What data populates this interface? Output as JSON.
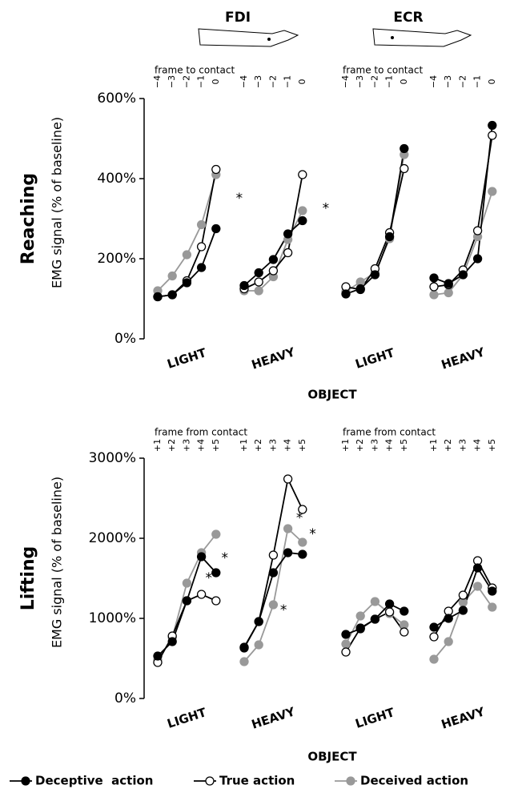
{
  "header": {
    "muscles": [
      "FDI",
      "ECR"
    ]
  },
  "chart_data": [
    {
      "type": "line",
      "title": "Reaching",
      "ylabel": "EMG signal (% of baseline)",
      "xlabel": "OBJECT",
      "frame_label": "frame  to contact",
      "frame_ticks": [
        "−4",
        "−3",
        "−2",
        "−1",
        "0"
      ],
      "categories": [
        "LIGHT",
        "HEAVY",
        "LIGHT",
        "HEAVY"
      ],
      "ylim": [
        0,
        600
      ],
      "yticks": [
        {
          "value": 0,
          "label": "0%"
        },
        {
          "value": 200,
          "label": "200%"
        },
        {
          "value": 400,
          "label": "400%"
        },
        {
          "value": 600,
          "label": "600%"
        }
      ],
      "series": [
        {
          "name": "Deceptive  action",
          "color": "#000000",
          "fill": "#000000",
          "values": [
            [
              105,
              110,
              140,
              178,
              275
            ],
            [
              133,
              165,
              198,
              262,
              295
            ],
            [
              112,
              125,
              160,
              255,
              475
            ],
            [
              152,
              138,
              160,
              200,
              533
            ]
          ]
        },
        {
          "name": "True action",
          "color": "#000000",
          "fill": "#ffffff",
          "values": [
            [
              105,
              110,
              145,
              230,
              423
            ],
            [
              125,
              142,
              170,
              215,
              410
            ],
            [
              130,
              123,
              175,
              265,
              425
            ],
            [
              130,
              135,
              172,
              270,
              508
            ]
          ]
        },
        {
          "name": "Deceived action",
          "color": "#999999",
          "fill": "#999999",
          "values": [
            [
              120,
              157,
              210,
              285,
              410
            ],
            [
              120,
              120,
              155,
              248,
              320
            ],
            [
              118,
              142,
              165,
              250,
              460
            ],
            [
              110,
              115,
              160,
              255,
              368
            ]
          ]
        }
      ],
      "annotations": [
        {
          "text": "*",
          "group": 0,
          "x": 5.6,
          "y": 350
        },
        {
          "text": "*",
          "group": 1,
          "x": 5.6,
          "y": 325
        }
      ]
    },
    {
      "type": "line",
      "title": "Lifting",
      "ylabel": "EMG signal (% of baseline)",
      "xlabel": "OBJECT",
      "frame_label": "frame  from contact",
      "frame_ticks": [
        "+1",
        "+2",
        "+3",
        "+4",
        "+5"
      ],
      "categories": [
        "LIGHT",
        "HEAVY",
        "LIGHT",
        "HEAVY"
      ],
      "ylim": [
        0,
        3000
      ],
      "yticks": [
        {
          "value": 0,
          "label": "0%"
        },
        {
          "value": 1000,
          "label": "1000%"
        },
        {
          "value": 2000,
          "label": "2000%"
        },
        {
          "value": 3000,
          "label": "3000%"
        }
      ],
      "series": [
        {
          "name": "Deceptive  action",
          "color": "#000000",
          "fill": "#000000",
          "values": [
            [
              530,
              710,
              1220,
              1770,
              1570
            ],
            [
              630,
              960,
              1570,
              1820,
              1800
            ],
            [
              800,
              870,
              990,
              1180,
              1090
            ],
            [
              890,
              1000,
              1100,
              1630,
              1340
            ]
          ]
        },
        {
          "name": "True action",
          "color": "#000000",
          "fill": "#ffffff",
          "values": [
            [
              450,
              780,
              1220,
              1300,
              1220
            ],
            [
              640,
              960,
              1790,
              2740,
              2360
            ],
            [
              580,
              880,
              990,
              1080,
              830
            ],
            [
              770,
              1090,
              1290,
              1720,
              1380
            ]
          ]
        },
        {
          "name": "Deceived action",
          "color": "#999999",
          "fill": "#999999",
          "values": [
            [
              480,
              760,
              1440,
              1820,
              2050
            ],
            [
              460,
              670,
              1170,
              2120,
              1950
            ],
            [
              680,
              1030,
              1210,
              1060,
              920
            ],
            [
              490,
              710,
              1200,
              1400,
              1140
            ]
          ]
        }
      ],
      "annotations": [
        {
          "text": "*",
          "group": 0,
          "x": 3.5,
          "y": 1500
        },
        {
          "text": "*",
          "group": 0,
          "x": 4.6,
          "y": 1750
        },
        {
          "text": "*",
          "group": 1,
          "x": 3.8,
          "y": 2250
        },
        {
          "text": "*",
          "group": 1,
          "x": 2.7,
          "y": 1100
        },
        {
          "text": "*",
          "group": 1,
          "x": 4.7,
          "y": 2050
        }
      ]
    }
  ]
}
